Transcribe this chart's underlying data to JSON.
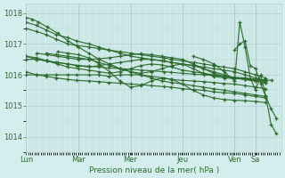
{
  "bg_color": "#d4eeed",
  "grid_color": "#b0d0ce",
  "line_color": "#2d6a2d",
  "xlabel": "Pression niveau de la mer( hPa )",
  "ylim": [
    1013.5,
    1018.3
  ],
  "yticks": [
    1014,
    1015,
    1016,
    1017,
    1018
  ],
  "day_labels": [
    "Lun",
    "Mar",
    "Mer",
    "Jeu",
    "Ven",
    "Sa"
  ],
  "day_x": [
    0.0,
    0.208,
    0.417,
    0.625,
    0.833,
    0.917
  ],
  "series": [
    {
      "x": [
        0.0,
        0.04,
        0.08,
        0.12,
        0.167,
        0.2,
        0.25,
        0.29,
        0.33,
        0.375,
        0.42,
        0.46,
        0.5,
        0.55,
        0.58,
        0.625,
        0.67,
        0.71,
        0.75,
        0.79,
        0.833,
        0.875,
        0.917,
        0.958
      ],
      "y": [
        1017.5,
        1017.4,
        1017.3,
        1017.15,
        1017.0,
        1016.95,
        1016.9,
        1016.85,
        1016.8,
        1016.75,
        1016.7,
        1016.65,
        1016.6,
        1016.55,
        1016.5,
        1016.45,
        1016.4,
        1016.35,
        1016.3,
        1016.25,
        1016.2,
        1016.1,
        1016.0,
        1015.9
      ]
    },
    {
      "x": [
        0.0,
        0.04,
        0.08,
        0.12,
        0.167,
        0.2,
        0.25,
        0.29,
        0.33,
        0.375,
        0.42,
        0.46,
        0.5,
        0.55,
        0.58,
        0.625,
        0.67,
        0.71,
        0.75,
        0.79,
        0.833,
        0.875,
        0.917,
        0.958
      ],
      "y": [
        1017.7,
        1017.6,
        1017.45,
        1017.3,
        1017.2,
        1017.1,
        1017.0,
        1016.9,
        1016.8,
        1016.7,
        1016.6,
        1016.55,
        1016.5,
        1016.45,
        1016.4,
        1016.35,
        1016.3,
        1016.25,
        1016.2,
        1016.15,
        1016.1,
        1016.0,
        1015.9,
        1015.8
      ]
    },
    {
      "x": [
        0.0,
        0.04,
        0.08,
        0.12,
        0.167,
        0.2,
        0.25,
        0.29,
        0.33,
        0.375,
        0.42,
        0.46,
        0.5,
        0.55,
        0.58,
        0.625,
        0.67,
        0.71,
        0.75,
        0.79,
        0.833,
        0.875,
        0.917,
        0.958
      ],
      "y": [
        1016.6,
        1016.5,
        1016.45,
        1016.4,
        1016.35,
        1016.3,
        1016.28,
        1016.25,
        1016.22,
        1016.2,
        1016.18,
        1016.15,
        1016.13,
        1016.1,
        1016.08,
        1016.05,
        1016.02,
        1016.0,
        1015.98,
        1015.95,
        1015.92,
        1015.9,
        1015.85,
        1015.8
      ]
    },
    {
      "x": [
        0.0,
        0.04,
        0.08,
        0.12,
        0.167,
        0.2,
        0.25,
        0.29,
        0.33,
        0.375,
        0.42,
        0.46,
        0.5,
        0.55,
        0.58,
        0.625,
        0.67,
        0.71,
        0.75,
        0.79,
        0.833,
        0.875,
        0.917,
        0.958
      ],
      "y": [
        1016.1,
        1016.0,
        1016.0,
        1016.0,
        1016.0,
        1016.0,
        1016.0,
        1016.0,
        1015.95,
        1016.0,
        1016.0,
        1016.0,
        1015.95,
        1015.9,
        1015.85,
        1015.82,
        1015.8,
        1015.78,
        1015.75,
        1015.72,
        1015.7,
        1015.65,
        1015.6,
        1015.55
      ]
    },
    {
      "x": [
        0.0,
        0.04,
        0.08,
        0.12,
        0.167,
        0.2,
        0.25,
        0.29,
        0.33,
        0.375,
        0.42,
        0.46,
        0.5,
        0.55,
        0.58,
        0.625,
        0.67,
        0.71,
        0.75,
        0.79,
        0.833,
        0.875,
        0.917,
        0.958
      ],
      "y": [
        1016.0,
        1016.0,
        1015.95,
        1015.9,
        1015.85,
        1015.82,
        1015.8,
        1015.78,
        1015.75,
        1015.73,
        1015.7,
        1015.68,
        1015.65,
        1015.62,
        1015.6,
        1015.55,
        1015.52,
        1015.5,
        1015.45,
        1015.42,
        1015.4,
        1015.35,
        1015.3,
        1015.25
      ]
    },
    {
      "x": [
        0.08,
        0.12,
        0.167,
        0.208,
        0.25,
        0.292,
        0.333,
        0.375,
        0.417,
        0.458,
        0.5,
        0.542,
        0.583,
        0.625,
        0.667,
        0.708,
        0.75,
        0.792,
        0.833,
        0.875,
        0.917,
        0.958
      ],
      "y": [
        1016.7,
        1016.65,
        1016.6,
        1016.55,
        1016.5,
        1016.4,
        1016.3,
        1016.2,
        1016.1,
        1016.0,
        1015.9,
        1015.8,
        1015.75,
        1015.7,
        1015.65,
        1015.6,
        1015.55,
        1015.5,
        1015.45,
        1015.4,
        1015.35,
        1015.3
      ]
    },
    {
      "x": [
        0.0,
        0.025,
        0.05,
        0.083,
        0.125,
        0.167,
        0.208,
        0.25,
        0.292,
        0.333,
        0.375,
        0.417,
        0.458,
        0.5,
        0.542,
        0.583,
        0.625,
        0.667,
        0.708,
        0.75,
        0.792,
        0.833,
        0.875,
        0.917,
        0.958
      ],
      "y": [
        1017.85,
        1017.8,
        1017.7,
        1017.55,
        1017.35,
        1017.1,
        1016.9,
        1016.7,
        1016.5,
        1016.35,
        1016.2,
        1016.1,
        1016.05,
        1016.1,
        1016.2,
        1016.3,
        1016.35,
        1016.3,
        1016.2,
        1016.1,
        1016.0,
        1015.9,
        1015.85,
        1015.8,
        1015.75
      ]
    },
    {
      "x": [
        0.0,
        0.042,
        0.083,
        0.125,
        0.167,
        0.208,
        0.25,
        0.292,
        0.333,
        0.375,
        0.417,
        0.458,
        0.5,
        0.542,
        0.583,
        0.625,
        0.667,
        0.708,
        0.75,
        0.792,
        0.833,
        0.875,
        0.917,
        0.958
      ],
      "y": [
        1016.6,
        1016.55,
        1016.45,
        1016.35,
        1016.25,
        1016.2,
        1016.15,
        1016.1,
        1016.05,
        1016.1,
        1016.2,
        1016.3,
        1016.35,
        1016.32,
        1016.25,
        1016.15,
        1016.1,
        1016.05,
        1016.0,
        1015.95,
        1015.9,
        1015.85,
        1015.8,
        1015.75
      ]
    },
    {
      "x": [
        0.0,
        0.042,
        0.083,
        0.125,
        0.167,
        0.208,
        0.25,
        0.292,
        0.333,
        0.375,
        0.417,
        0.458,
        0.5,
        0.542,
        0.583,
        0.625,
        0.667,
        0.708,
        0.75,
        0.792,
        0.833,
        0.875,
        0.917,
        0.958
      ],
      "y": [
        1016.5,
        1016.5,
        1016.45,
        1016.4,
        1016.35,
        1016.3,
        1016.25,
        1016.3,
        1016.35,
        1016.4,
        1016.45,
        1016.5,
        1016.5,
        1016.45,
        1016.4,
        1016.35,
        1016.2,
        1016.05,
        1015.95,
        1015.9,
        1015.88,
        1015.86,
        1015.84,
        1015.82
      ]
    },
    {
      "x": [
        0.042,
        0.083,
        0.125,
        0.167,
        0.208,
        0.25,
        0.292,
        0.333,
        0.375,
        0.417,
        0.458,
        0.5,
        0.542,
        0.583,
        0.625,
        0.667,
        0.708,
        0.75,
        0.792,
        0.833,
        0.875,
        0.917,
        0.95,
        0.98
      ],
      "y": [
        1016.7,
        1016.65,
        1016.6,
        1016.55,
        1016.5,
        1016.5,
        1016.52,
        1016.55,
        1016.6,
        1016.65,
        1016.68,
        1016.65,
        1016.6,
        1016.55,
        1016.5,
        1016.35,
        1016.2,
        1016.05,
        1015.95,
        1015.9,
        1015.88,
        1015.86,
        1015.84,
        1015.82
      ]
    },
    {
      "x": [
        0.667,
        0.708,
        0.75,
        0.792,
        0.833,
        0.854,
        0.875,
        0.896,
        0.917,
        0.938,
        0.958,
        0.979,
        1.0
      ],
      "y": [
        1016.6,
        1016.5,
        1016.35,
        1016.1,
        1015.8,
        1017.7,
        1016.9,
        1015.9,
        1015.5,
        1016.0,
        1015.3,
        1014.4,
        1014.1
      ]
    },
    {
      "x": [
        0.833,
        0.854,
        0.875,
        0.896,
        0.917,
        0.938,
        0.958,
        0.979,
        1.0
      ],
      "y": [
        1016.8,
        1017.0,
        1017.1,
        1016.3,
        1016.2,
        1015.7,
        1015.3,
        1014.9,
        1014.6
      ]
    },
    {
      "x": [
        0.125,
        0.167,
        0.208,
        0.25,
        0.292,
        0.333,
        0.375,
        0.417,
        0.458,
        0.5,
        0.542,
        0.583,
        0.625,
        0.667,
        0.708,
        0.75,
        0.792,
        0.833,
        0.875,
        0.917,
        0.958
      ],
      "y": [
        1016.75,
        1016.7,
        1016.65,
        1016.55,
        1016.35,
        1016.1,
        1015.8,
        1015.6,
        1015.65,
        1015.8,
        1015.9,
        1015.85,
        1015.7,
        1015.5,
        1015.35,
        1015.25,
        1015.2,
        1015.18,
        1015.16,
        1015.14,
        1015.1
      ]
    }
  ]
}
